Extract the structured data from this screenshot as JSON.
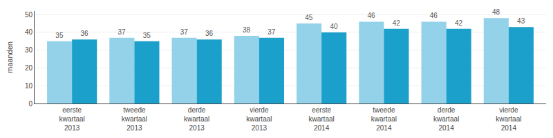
{
  "chart_data": {
    "type": "bar",
    "categories": [
      "eerste\nkwartaal\n2013",
      "tweede\nkwartaal\n2013",
      "derde\nkwartaal\n2013",
      "vierde\nkwartaal\n2013",
      "eerste\nkwartaal\n2014",
      "tweede\nkwartaal\n2014",
      "derde\nkwartaal\n2014",
      "vierde\nkwartaal\n2014"
    ],
    "series": [
      {
        "color": "#93d2e8",
        "values": [
          35,
          37,
          37,
          38,
          45,
          46,
          46,
          48
        ]
      },
      {
        "color": "#1b9fcb",
        "values": [
          36,
          35,
          36,
          37,
          40,
          42,
          42,
          43
        ]
      }
    ],
    "ylabel": "maanden",
    "ylim": [
      0,
      52
    ],
    "yticks": [
      0,
      10,
      20,
      30,
      40,
      50
    ],
    "grid": true,
    "data_labels": true
  }
}
